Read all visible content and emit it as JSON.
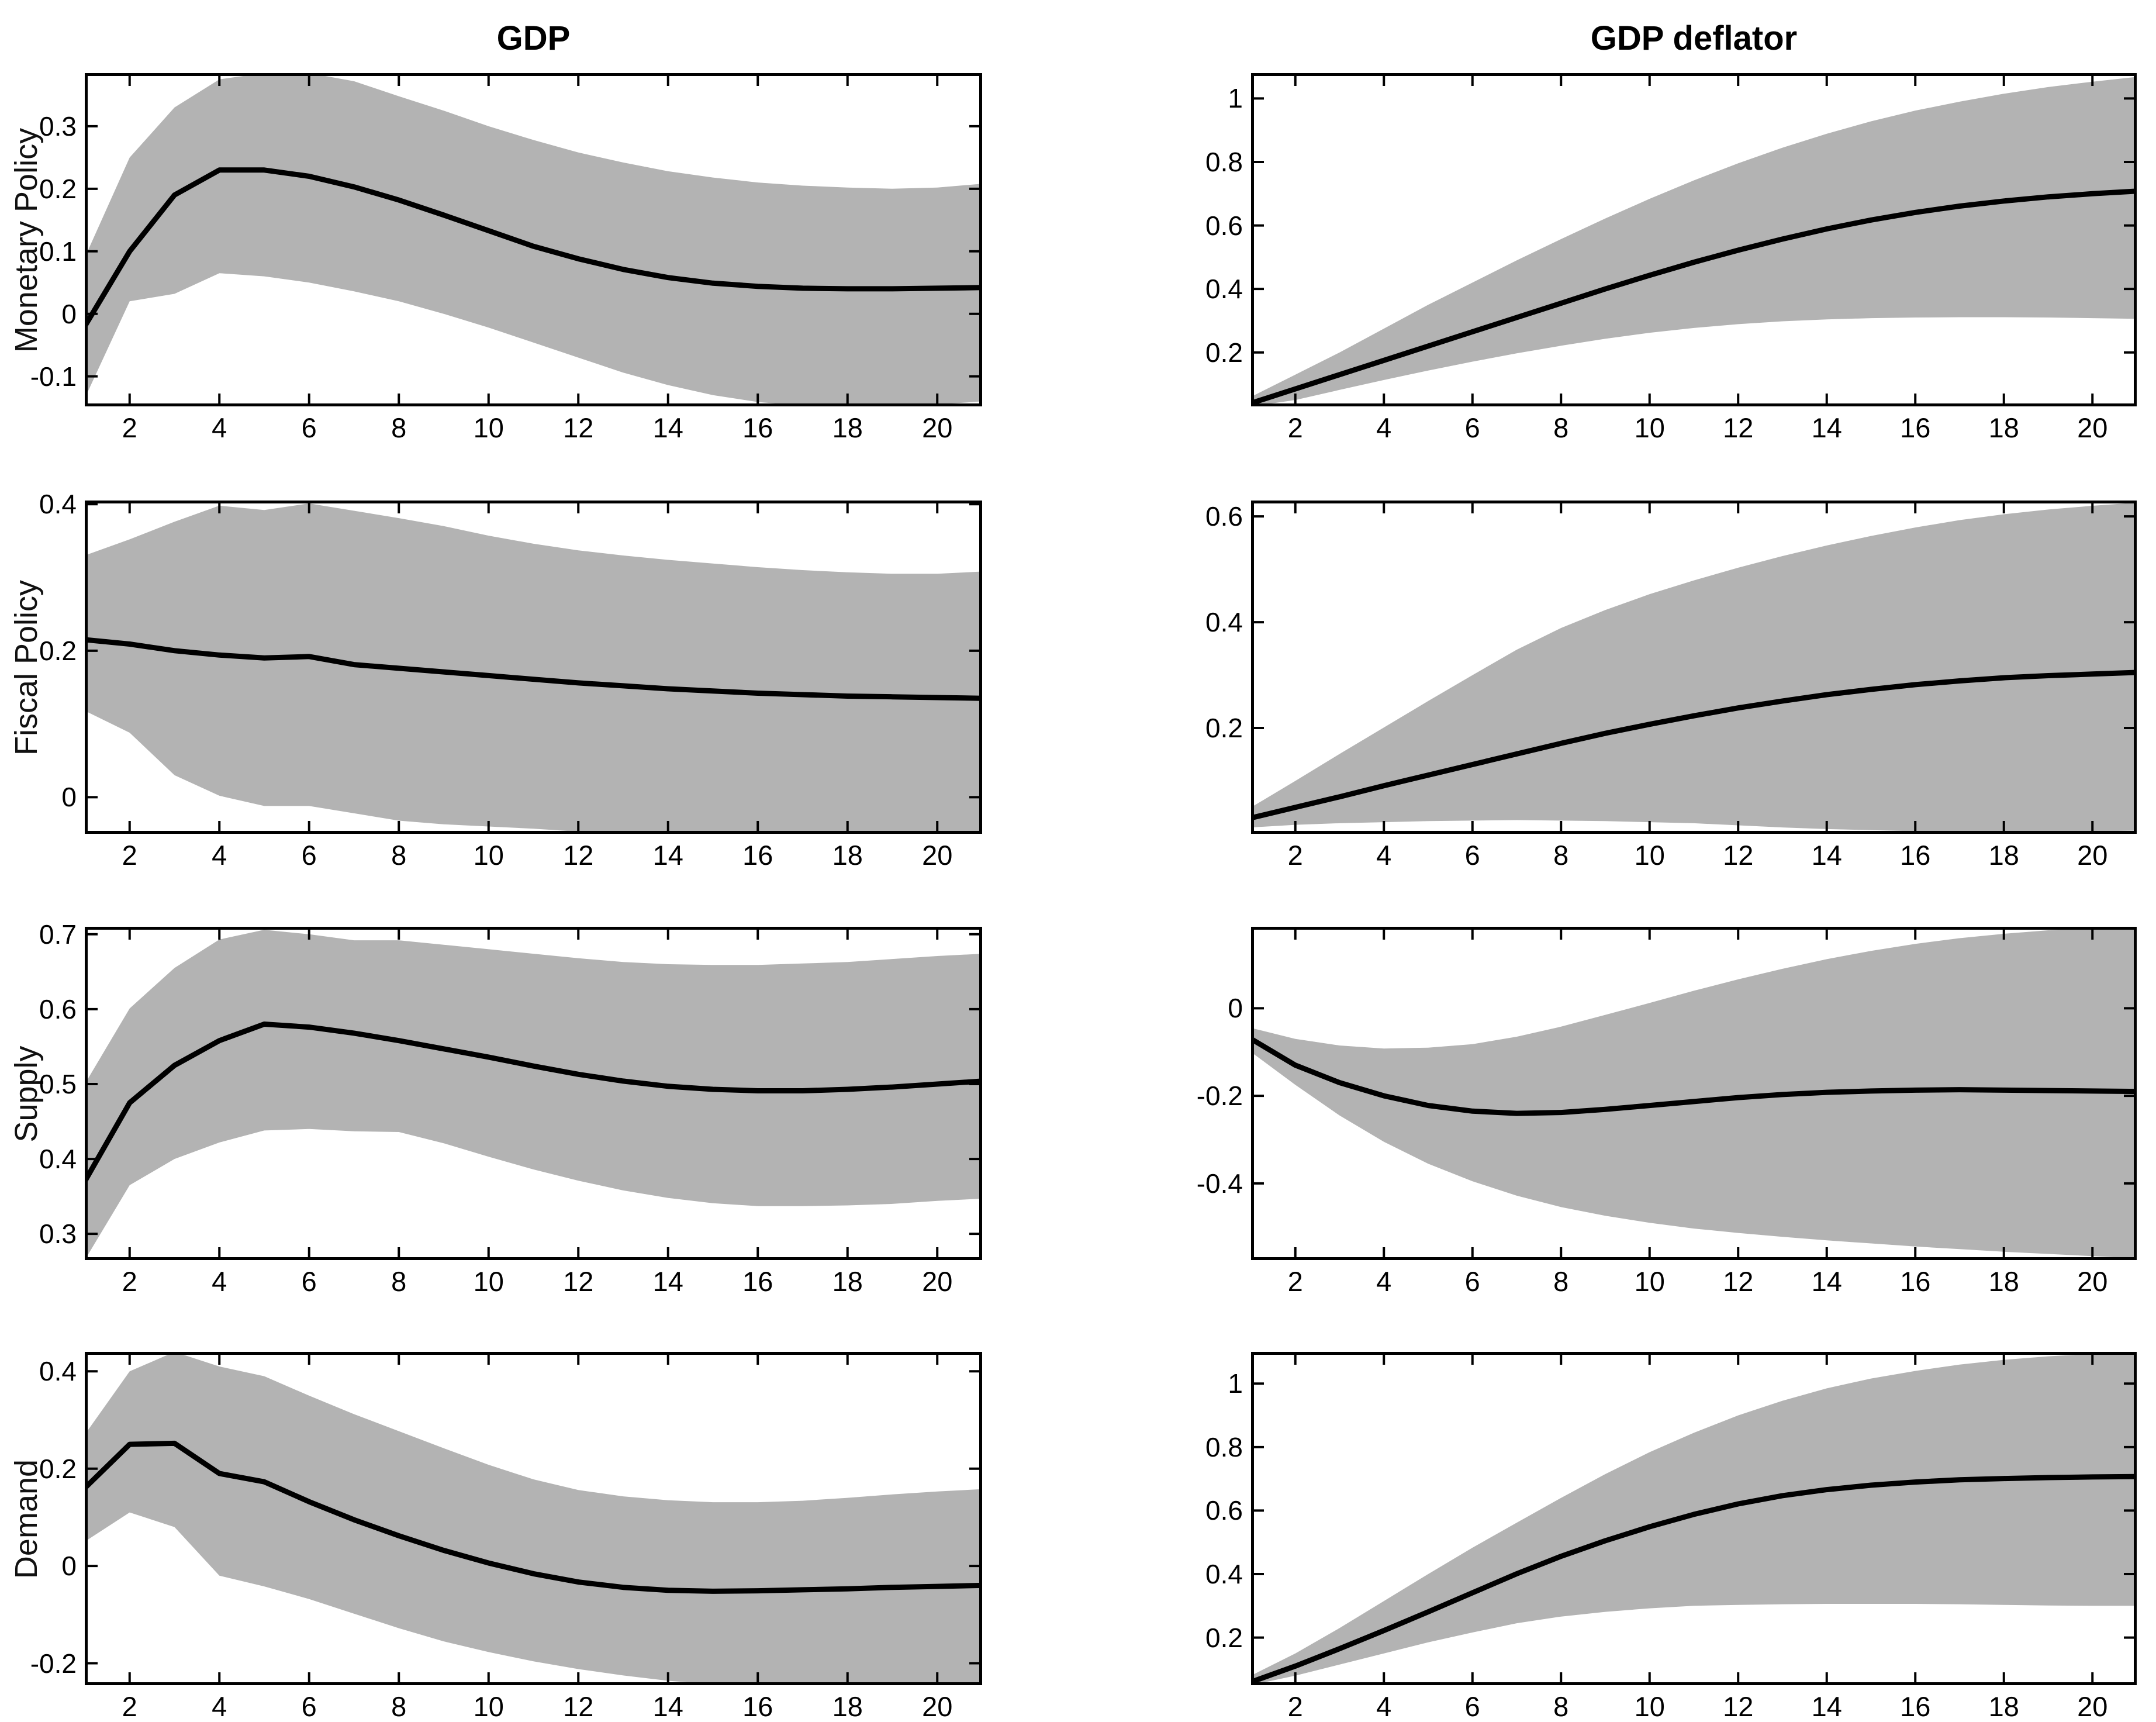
{
  "figure": {
    "background": "#ffffff",
    "description": "Impulse responses of GDP and GDP deflator to four structural shocks, median line with gray confidence band"
  },
  "columns": [
    {
      "title": "GDP"
    },
    {
      "title": "GDP deflator"
    }
  ],
  "rows": [
    {
      "label": "Monetary Policy"
    },
    {
      "label": "Fiscal Policy"
    },
    {
      "label": "Supply"
    },
    {
      "label": "Demand"
    }
  ],
  "style": {
    "band_color": "#b3b3b3",
    "line_color": "#000000",
    "axis_color": "#000000"
  },
  "chart_data": [
    {
      "type": "area",
      "row": "Monetary Policy",
      "col": "GDP",
      "x": [
        1,
        2,
        3,
        4,
        5,
        6,
        7,
        8,
        9,
        10,
        11,
        12,
        13,
        14,
        15,
        16,
        17,
        18,
        19,
        20,
        21
      ],
      "xticks": [
        2,
        4,
        6,
        8,
        10,
        12,
        14,
        16,
        18,
        20
      ],
      "xlim": [
        1,
        21
      ],
      "ylim": [
        -0.148,
        0.385
      ],
      "yticks": [
        -0.1,
        0,
        0.1,
        0.2,
        0.3
      ],
      "median": [
        -0.02,
        0.1,
        0.19,
        0.23,
        0.23,
        0.22,
        0.203,
        0.182,
        0.158,
        0.133,
        0.108,
        0.088,
        0.071,
        0.058,
        0.049,
        0.044,
        0.041,
        0.04,
        0.04,
        0.041,
        0.042
      ],
      "band_upper": [
        0.09,
        0.25,
        0.33,
        0.375,
        0.385,
        0.385,
        0.372,
        0.348,
        0.325,
        0.3,
        0.278,
        0.258,
        0.242,
        0.228,
        0.218,
        0.21,
        0.205,
        0.202,
        0.2,
        0.202,
        0.208
      ],
      "band_lower": [
        -0.135,
        0.02,
        0.032,
        0.065,
        0.06,
        0.05,
        0.036,
        0.02,
        0.0,
        -0.022,
        -0.046,
        -0.07,
        -0.094,
        -0.114,
        -0.13,
        -0.141,
        -0.147,
        -0.148,
        -0.148,
        -0.145,
        -0.14
      ]
    },
    {
      "type": "area",
      "row": "Monetary Policy",
      "col": "GDP deflator",
      "x": [
        1,
        2,
        3,
        4,
        5,
        6,
        7,
        8,
        9,
        10,
        11,
        12,
        13,
        14,
        15,
        16,
        17,
        18,
        19,
        20,
        21
      ],
      "xticks": [
        2,
        4,
        6,
        8,
        10,
        12,
        14,
        16,
        18,
        20
      ],
      "xlim": [
        1,
        21
      ],
      "ylim": [
        0.03,
        1.08
      ],
      "yticks": [
        0.2,
        0.4,
        0.6,
        0.8,
        1
      ],
      "median": [
        0.04,
        0.085,
        0.13,
        0.175,
        0.22,
        0.265,
        0.31,
        0.355,
        0.4,
        0.443,
        0.484,
        0.522,
        0.557,
        0.589,
        0.617,
        0.641,
        0.661,
        0.677,
        0.69,
        0.7,
        0.708
      ],
      "band_upper": [
        0.06,
        0.13,
        0.2,
        0.275,
        0.35,
        0.42,
        0.49,
        0.557,
        0.622,
        0.684,
        0.742,
        0.796,
        0.845,
        0.889,
        0.928,
        0.962,
        0.99,
        1.015,
        1.036,
        1.053,
        1.068
      ],
      "band_lower": [
        0.02,
        0.05,
        0.082,
        0.113,
        0.143,
        0.171,
        0.197,
        0.221,
        0.243,
        0.262,
        0.277,
        0.289,
        0.298,
        0.304,
        0.308,
        0.31,
        0.311,
        0.311,
        0.31,
        0.308,
        0.306
      ]
    },
    {
      "type": "area",
      "row": "Fiscal Policy",
      "col": "GDP",
      "x": [
        1,
        2,
        3,
        4,
        5,
        6,
        7,
        8,
        9,
        10,
        11,
        12,
        13,
        14,
        15,
        16,
        17,
        18,
        19,
        20,
        21
      ],
      "xticks": [
        2,
        4,
        6,
        8,
        10,
        12,
        14,
        16,
        18,
        20
      ],
      "xlim": [
        1,
        21
      ],
      "ylim": [
        -0.05,
        0.405
      ],
      "yticks": [
        0,
        0.2,
        0.4
      ],
      "median": [
        0.215,
        0.209,
        0.2,
        0.194,
        0.19,
        0.192,
        0.181,
        0.176,
        0.171,
        0.166,
        0.161,
        0.156,
        0.152,
        0.148,
        0.145,
        0.142,
        0.14,
        0.138,
        0.137,
        0.136,
        0.135
      ],
      "band_upper": [
        0.33,
        0.352,
        0.376,
        0.398,
        0.392,
        0.401,
        0.391,
        0.381,
        0.37,
        0.357,
        0.346,
        0.337,
        0.33,
        0.324,
        0.319,
        0.314,
        0.31,
        0.307,
        0.305,
        0.305,
        0.308
      ],
      "band_lower": [
        0.118,
        0.088,
        0.03,
        0.002,
        -0.012,
        -0.012,
        -0.022,
        -0.032,
        -0.037,
        -0.04,
        -0.043,
        -0.047,
        -0.05,
        -0.05,
        -0.05,
        -0.05,
        -0.05,
        -0.05,
        -0.05,
        -0.05,
        -0.05
      ]
    },
    {
      "type": "area",
      "row": "Fiscal Policy",
      "col": "GDP deflator",
      "x": [
        1,
        2,
        3,
        4,
        5,
        6,
        7,
        8,
        9,
        10,
        11,
        12,
        13,
        14,
        15,
        16,
        17,
        18,
        19,
        20,
        21
      ],
      "xticks": [
        2,
        4,
        6,
        8,
        10,
        12,
        14,
        16,
        18,
        20
      ],
      "xlim": [
        1,
        21
      ],
      "ylim": [
        0,
        0.63
      ],
      "yticks": [
        0.2,
        0.4,
        0.6
      ],
      "median": [
        0.03,
        0.05,
        0.07,
        0.091,
        0.111,
        0.131,
        0.151,
        0.171,
        0.19,
        0.207,
        0.223,
        0.238,
        0.251,
        0.263,
        0.273,
        0.282,
        0.289,
        0.295,
        0.299,
        0.302,
        0.305
      ],
      "band_upper": [
        0.05,
        0.1,
        0.151,
        0.201,
        0.251,
        0.3,
        0.348,
        0.389,
        0.423,
        0.453,
        0.479,
        0.503,
        0.525,
        0.545,
        0.563,
        0.579,
        0.593,
        0.604,
        0.613,
        0.62,
        0.626
      ],
      "band_lower": [
        0.012,
        0.017,
        0.02,
        0.022,
        0.024,
        0.025,
        0.026,
        0.025,
        0.024,
        0.022,
        0.02,
        0.016,
        0.012,
        0.009,
        0.007,
        0.005,
        0.004,
        0.004,
        0.004,
        0.005,
        0.006
      ]
    },
    {
      "type": "area",
      "row": "Supply",
      "col": "GDP",
      "x": [
        1,
        2,
        3,
        4,
        5,
        6,
        7,
        8,
        9,
        10,
        11,
        12,
        13,
        14,
        15,
        16,
        17,
        18,
        19,
        20,
        21
      ],
      "xticks": [
        2,
        4,
        6,
        8,
        10,
        12,
        14,
        16,
        18,
        20
      ],
      "xlim": [
        1,
        21
      ],
      "ylim": [
        0.265,
        0.71
      ],
      "yticks": [
        0.3,
        0.4,
        0.5,
        0.6,
        0.7
      ],
      "median": [
        0.37,
        0.475,
        0.525,
        0.558,
        0.58,
        0.576,
        0.568,
        0.558,
        0.547,
        0.536,
        0.524,
        0.513,
        0.504,
        0.497,
        0.493,
        0.491,
        0.491,
        0.493,
        0.496,
        0.5,
        0.504
      ],
      "band_upper": [
        0.5,
        0.601,
        0.655,
        0.693,
        0.706,
        0.7,
        0.692,
        0.692,
        0.686,
        0.68,
        0.674,
        0.668,
        0.663,
        0.66,
        0.659,
        0.659,
        0.661,
        0.663,
        0.667,
        0.671,
        0.674
      ],
      "band_lower": [
        0.262,
        0.365,
        0.4,
        0.422,
        0.438,
        0.44,
        0.437,
        0.436,
        0.421,
        0.403,
        0.386,
        0.371,
        0.358,
        0.348,
        0.341,
        0.337,
        0.337,
        0.338,
        0.34,
        0.344,
        0.347
      ]
    },
    {
      "type": "area",
      "row": "Supply",
      "col": "GDP deflator",
      "x": [
        1,
        2,
        3,
        4,
        5,
        6,
        7,
        8,
        9,
        10,
        11,
        12,
        13,
        14,
        15,
        16,
        17,
        18,
        19,
        20,
        21
      ],
      "xticks": [
        2,
        4,
        6,
        8,
        10,
        12,
        14,
        16,
        18,
        20
      ],
      "xlim": [
        1,
        21
      ],
      "ylim": [
        -0.575,
        0.186
      ],
      "yticks": [
        -0.4,
        -0.2,
        0
      ],
      "median": [
        -0.07,
        -0.13,
        -0.17,
        -0.2,
        -0.222,
        -0.235,
        -0.24,
        -0.238,
        -0.231,
        -0.222,
        -0.213,
        -0.204,
        -0.197,
        -0.192,
        -0.189,
        -0.187,
        -0.186,
        -0.187,
        -0.188,
        -0.189,
        -0.19
      ],
      "band_upper": [
        -0.045,
        -0.07,
        -0.085,
        -0.092,
        -0.09,
        -0.082,
        -0.065,
        -0.042,
        -0.015,
        0.012,
        0.04,
        0.066,
        0.09,
        0.112,
        0.131,
        0.147,
        0.16,
        0.17,
        0.178,
        0.183,
        0.186
      ],
      "band_lower": [
        -0.1,
        -0.175,
        -0.245,
        -0.305,
        -0.355,
        -0.395,
        -0.428,
        -0.454,
        -0.474,
        -0.49,
        -0.503,
        -0.513,
        -0.522,
        -0.53,
        -0.537,
        -0.544,
        -0.55,
        -0.556,
        -0.561,
        -0.566,
        -0.571
      ]
    },
    {
      "type": "area",
      "row": "Demand",
      "col": "GDP",
      "x": [
        1,
        2,
        3,
        4,
        5,
        6,
        7,
        8,
        9,
        10,
        11,
        12,
        13,
        14,
        15,
        16,
        17,
        18,
        19,
        20,
        21
      ],
      "xticks": [
        2,
        4,
        6,
        8,
        10,
        12,
        14,
        16,
        18,
        20
      ],
      "xlim": [
        1,
        21
      ],
      "ylim": [
        -0.245,
        0.44
      ],
      "yticks": [
        -0.2,
        0,
        0.2,
        0.4
      ],
      "median": [
        0.16,
        0.25,
        0.252,
        0.19,
        0.173,
        0.132,
        0.095,
        0.062,
        0.032,
        0.006,
        -0.016,
        -0.033,
        -0.044,
        -0.05,
        -0.052,
        -0.051,
        -0.049,
        -0.047,
        -0.044,
        -0.042,
        -0.04
      ],
      "band_upper": [
        0.27,
        0.4,
        0.44,
        0.41,
        0.39,
        0.35,
        0.312,
        0.277,
        0.242,
        0.208,
        0.178,
        0.156,
        0.143,
        0.135,
        0.131,
        0.131,
        0.134,
        0.14,
        0.147,
        0.153,
        0.158
      ],
      "band_lower": [
        0.05,
        0.11,
        0.08,
        -0.02,
        -0.042,
        -0.068,
        -0.098,
        -0.128,
        -0.155,
        -0.177,
        -0.196,
        -0.212,
        -0.225,
        -0.236,
        -0.243,
        -0.245,
        -0.245,
        -0.245,
        -0.245,
        -0.245,
        -0.245
      ]
    },
    {
      "type": "area",
      "row": "Demand",
      "col": "GDP deflator",
      "x": [
        1,
        2,
        3,
        4,
        5,
        6,
        7,
        8,
        9,
        10,
        11,
        12,
        13,
        14,
        15,
        16,
        17,
        18,
        19,
        20,
        21
      ],
      "xticks": [
        2,
        4,
        6,
        8,
        10,
        12,
        14,
        16,
        18,
        20
      ],
      "xlim": [
        1,
        21
      ],
      "ylim": [
        0.05,
        1.1
      ],
      "yticks": [
        0.2,
        0.4,
        0.6,
        0.8,
        1
      ],
      "median": [
        0.06,
        0.11,
        0.165,
        0.222,
        0.281,
        0.341,
        0.401,
        0.456,
        0.505,
        0.549,
        0.588,
        0.621,
        0.647,
        0.666,
        0.68,
        0.69,
        0.697,
        0.701,
        0.704,
        0.706,
        0.707
      ],
      "band_upper": [
        0.08,
        0.15,
        0.23,
        0.315,
        0.4,
        0.483,
        0.562,
        0.64,
        0.715,
        0.784,
        0.845,
        0.9,
        0.946,
        0.985,
        1.016,
        1.04,
        1.06,
        1.075,
        1.086,
        1.094,
        1.1
      ],
      "band_lower": [
        0.045,
        0.08,
        0.115,
        0.15,
        0.185,
        0.216,
        0.245,
        0.266,
        0.281,
        0.292,
        0.3,
        0.303,
        0.305,
        0.306,
        0.306,
        0.306,
        0.305,
        0.303,
        0.301,
        0.3,
        0.3
      ]
    }
  ]
}
